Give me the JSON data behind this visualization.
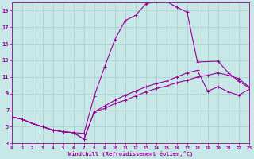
{
  "bg_color": "#c8e8e8",
  "grid_color": "#aacccc",
  "line_color": "#990099",
  "xlim": [
    0,
    23
  ],
  "ylim": [
    3,
    20
  ],
  "xticks": [
    0,
    1,
    2,
    3,
    4,
    5,
    6,
    7,
    8,
    9,
    10,
    11,
    12,
    13,
    14,
    15,
    16,
    17,
    18,
    19,
    20,
    21,
    22,
    23
  ],
  "yticks": [
    3,
    5,
    7,
    9,
    11,
    13,
    15,
    17,
    19
  ],
  "xlabel": "Windchill (Refroidissement éolien,°C)",
  "line1_x": [
    0,
    1,
    2,
    3,
    4,
    5,
    6,
    7,
    8,
    9,
    10,
    11,
    12,
    13,
    14,
    15,
    16,
    17,
    18,
    20,
    21,
    22,
    23
  ],
  "line1_y": [
    6.2,
    5.9,
    5.4,
    5.0,
    4.6,
    4.4,
    4.3,
    4.2,
    8.7,
    12.2,
    15.5,
    17.8,
    18.4,
    19.8,
    20.1,
    20.1,
    19.4,
    18.8,
    12.8,
    12.9,
    11.5,
    10.5,
    9.7
  ],
  "line2_x": [
    0,
    1,
    2,
    3,
    4,
    5,
    6,
    7,
    8,
    9,
    10,
    11,
    12,
    13,
    14,
    15,
    16,
    17,
    18,
    19,
    20,
    21,
    22,
    23
  ],
  "line2_y": [
    6.2,
    5.9,
    5.4,
    5.0,
    4.6,
    4.4,
    4.3,
    3.5,
    6.8,
    7.5,
    8.2,
    8.8,
    9.3,
    9.8,
    10.2,
    10.5,
    11.0,
    11.5,
    11.8,
    9.3,
    9.8,
    9.2,
    8.8,
    9.5
  ],
  "line3_x": [
    0,
    1,
    2,
    3,
    4,
    5,
    6,
    7,
    8,
    9,
    10,
    11,
    12,
    13,
    14,
    15,
    16,
    17,
    18,
    19,
    20,
    21,
    22,
    23
  ],
  "line3_y": [
    6.2,
    5.9,
    5.4,
    5.0,
    4.6,
    4.4,
    4.3,
    3.5,
    6.8,
    7.2,
    7.8,
    8.2,
    8.7,
    9.2,
    9.6,
    9.9,
    10.3,
    10.6,
    11.0,
    11.2,
    11.5,
    11.2,
    10.8,
    9.8
  ]
}
